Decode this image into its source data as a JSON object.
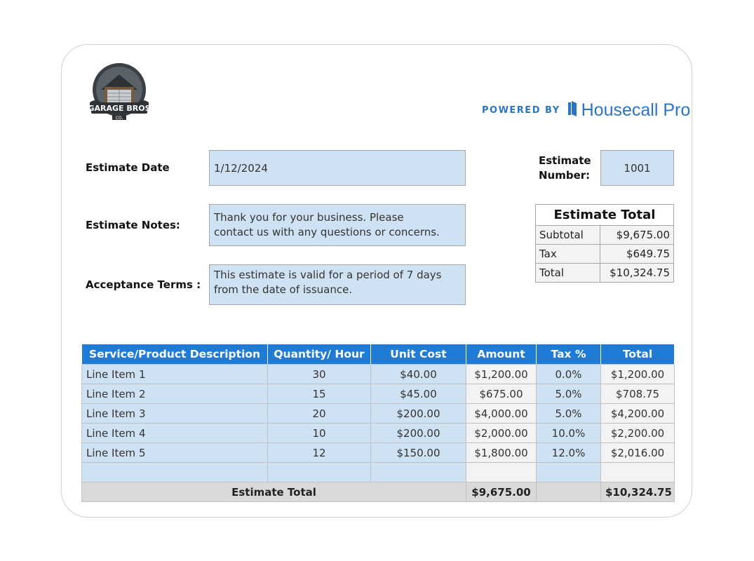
{
  "brand": {
    "logo_text": "GARAGE BROS",
    "logo_sub": "CO.",
    "powered_label": "POWERED BY",
    "powered_brand": "Housecall Pro",
    "accent": "#2c74c6"
  },
  "form": {
    "estimate_date_label": "Estimate Date",
    "estimate_date_value": "1/12/2024",
    "estimate_number_label_1": "Estimate",
    "estimate_number_label_2": "Number:",
    "estimate_number_value": "1001",
    "notes_label": "Estimate Notes:",
    "notes_line1": "Thank you for your business. Please",
    "notes_line2": "contact us with any questions or concerns.",
    "terms_label": "Acceptance Terms :",
    "terms_line1": "This estimate is valid for a period of 7 days",
    "terms_line2": "from the date of issuance."
  },
  "summary": {
    "title": "Estimate Total",
    "rows": [
      {
        "label": "Subtotal",
        "value": "$9,675.00"
      },
      {
        "label": "Tax",
        "value": "$649.75"
      },
      {
        "label": "Total",
        "value": "$10,324.75"
      }
    ]
  },
  "items": {
    "headers": [
      "Service/Product Description",
      "Quantity/ Hour",
      "Unit Cost",
      "Amount",
      "Tax %",
      "Total"
    ],
    "rows": [
      [
        "Line Item 1",
        "30",
        "$40.00",
        "$1,200.00",
        "0.0%",
        "$1,200.00"
      ],
      [
        "Line Item 2",
        "15",
        "$45.00",
        "$675.00",
        "5.0%",
        "$708.75"
      ],
      [
        "Line Item 3",
        "20",
        "$200.00",
        "$4,000.00",
        "5.0%",
        "$4,200.00"
      ],
      [
        "Line Item 4",
        "10",
        "$200.00",
        "$2,000.00",
        "10.0%",
        "$2,200.00"
      ],
      [
        "Line Item 5",
        "12",
        "$150.00",
        "$1,800.00",
        "12.0%",
        "$2,016.00"
      ],
      [
        "",
        "",
        "",
        "",
        "",
        ""
      ]
    ],
    "footer_label": "Estimate Total",
    "footer_amount": "$9,675.00",
    "footer_total": "$10,324.75"
  }
}
